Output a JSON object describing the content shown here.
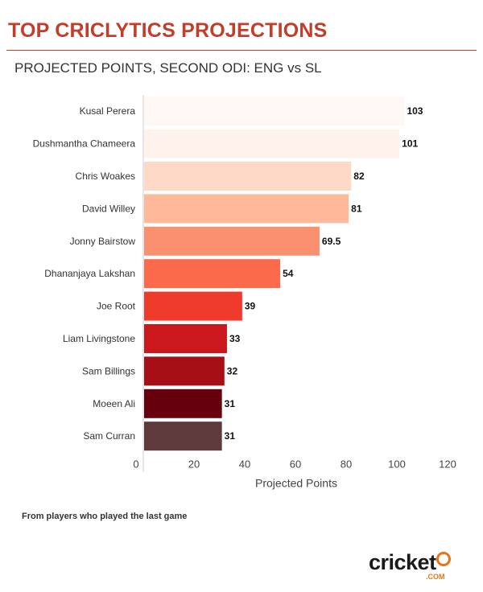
{
  "header": {
    "title": "TOP CRICLYTICS PROJECTIONS",
    "subtitle": "PROJECTED POINTS, SECOND ODI: ENG vs SL"
  },
  "footnote": "From players who played the last game",
  "logo": {
    "word": "cricket",
    "suffix": ".COM",
    "accent_color": "#e8731a"
  },
  "colors": {
    "title": "#c33d2b"
  },
  "chart_data": {
    "type": "bar",
    "orientation": "horizontal",
    "title": "PROJECTED POINTS, SECOND ODI: ENG vs SL",
    "xlabel": "Projected Points",
    "ylabel": "",
    "xlim": [
      0,
      120
    ],
    "xticks": [
      0,
      20,
      40,
      60,
      80,
      100,
      120
    ],
    "grid": false,
    "categories": [
      "Kusal Perera",
      "Dushmantha Chameera",
      "Chris Woakes",
      "David Willey",
      "Jonny Bairstow",
      "Dhananjaya Lakshan",
      "Joe Root",
      "Liam Livingstone",
      "Sam Billings",
      "Moeen Ali",
      "Sam Curran"
    ],
    "values": [
      103,
      101,
      82,
      81,
      69.5,
      54,
      39,
      33,
      32,
      31,
      31
    ],
    "labels": [
      "103",
      "101",
      "82",
      "81",
      "69.5",
      "54",
      "39",
      "33",
      "32",
      "31",
      "31"
    ],
    "colors": [
      "#fff7f3",
      "#fff2ec",
      "#fed9c7",
      "#fdb99a",
      "#fb9070",
      "#fb6a4a",
      "#ef3b2c",
      "#cb181d",
      "#a50f15",
      "#67000d",
      "#5e3a3c"
    ]
  }
}
